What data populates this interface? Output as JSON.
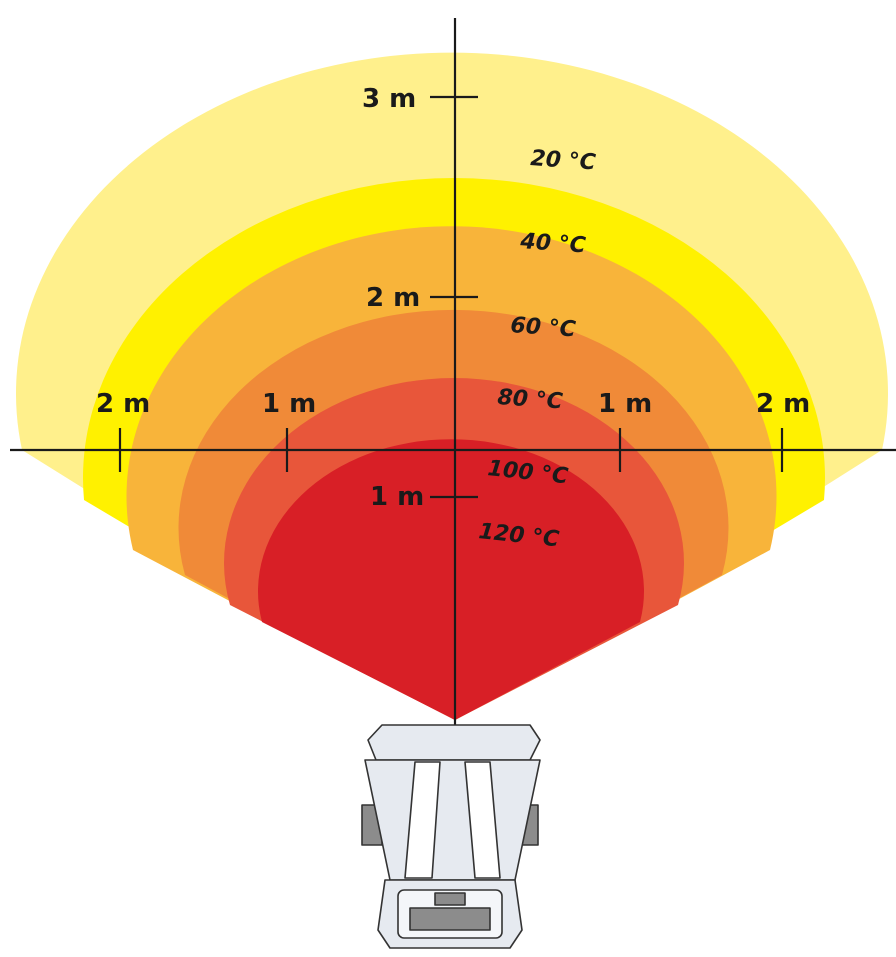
{
  "zones": [
    {
      "temperature_label": "20 °C",
      "color": "#FFF08C"
    },
    {
      "temperature_label": "40 °C",
      "color": "#FFF100"
    },
    {
      "temperature_label": "60 °C",
      "color": "#F8B43A"
    },
    {
      "temperature_label": "80 °C",
      "color": "#F08A38"
    },
    {
      "temperature_label": "100 °C",
      "color": "#E8563A"
    },
    {
      "temperature_label": "120 °C",
      "color": "#D81F26"
    }
  ],
  "vertical_axis": {
    "ticks": [
      {
        "label": "3 m"
      },
      {
        "label": "2 m"
      },
      {
        "label": "1 m"
      }
    ]
  },
  "horizontal_axis": {
    "ticks": [
      {
        "label": "2 m"
      },
      {
        "label": "1 m"
      },
      {
        "label": "1 m"
      },
      {
        "label": "2 m"
      }
    ]
  },
  "heater": {
    "body_color": "#E6EAF0",
    "mount_color": "#8C8C8C"
  }
}
